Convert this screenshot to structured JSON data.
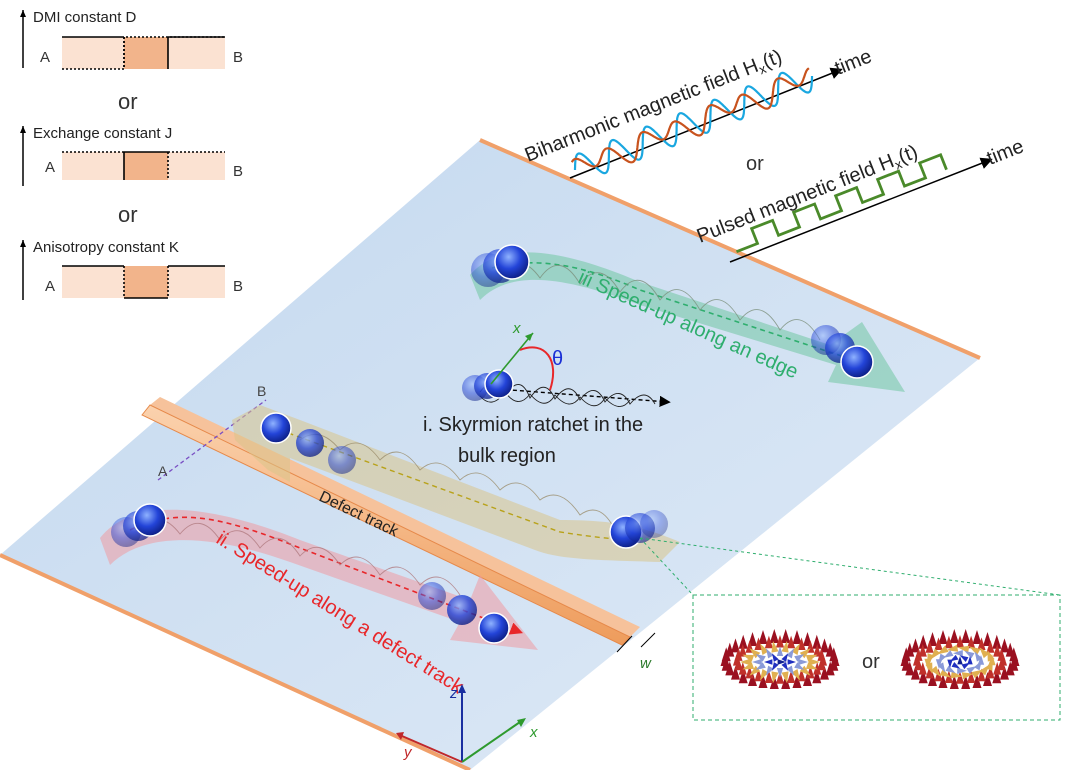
{
  "legend": {
    "panels": [
      {
        "label": "DMI constant D",
        "left": "A",
        "right": "B"
      },
      {
        "label": "Exchange constant J",
        "left": "A",
        "right": "B"
      },
      {
        "label": "Anisotropy constant K",
        "left": "A",
        "right": "B"
      }
    ],
    "separator": "or"
  },
  "fields": {
    "biharmonic_label": "Biharmonic magnetic field H",
    "biharmonic_sub": "x",
    "biharmonic_arg": "(t)",
    "pulsed_label": "Pulsed magnetic field H",
    "pulsed_sub": "x",
    "pulsed_arg": "(t)",
    "time_label": "time",
    "or_label": "or"
  },
  "regions": {
    "bulk_line1": "i. Skyrmion ratchet in the",
    "bulk_line2": "bulk region",
    "defect_label": "ii. Speed-up along a defect track",
    "edge_label": "iii Speed-up along an edge",
    "track_label": "Defect track",
    "theta": "θ",
    "local_x": "x",
    "point_a": "A",
    "point_b": "B",
    "width_label": "w"
  },
  "inset": {
    "or_label": "or"
  },
  "axes": {
    "x": "x",
    "y": "y",
    "z": "z"
  },
  "colors": {
    "bulk_track": "#000000",
    "defect_track": "#e8272a",
    "edge_track": "#2fae6e",
    "return_track": "#b8a21a",
    "defect_strip": "#f2a86d",
    "sinusoid_blue": "#1aa7e0",
    "sinusoid_orange": "#c8531e",
    "pulse_green": "#4a8a2a"
  }
}
